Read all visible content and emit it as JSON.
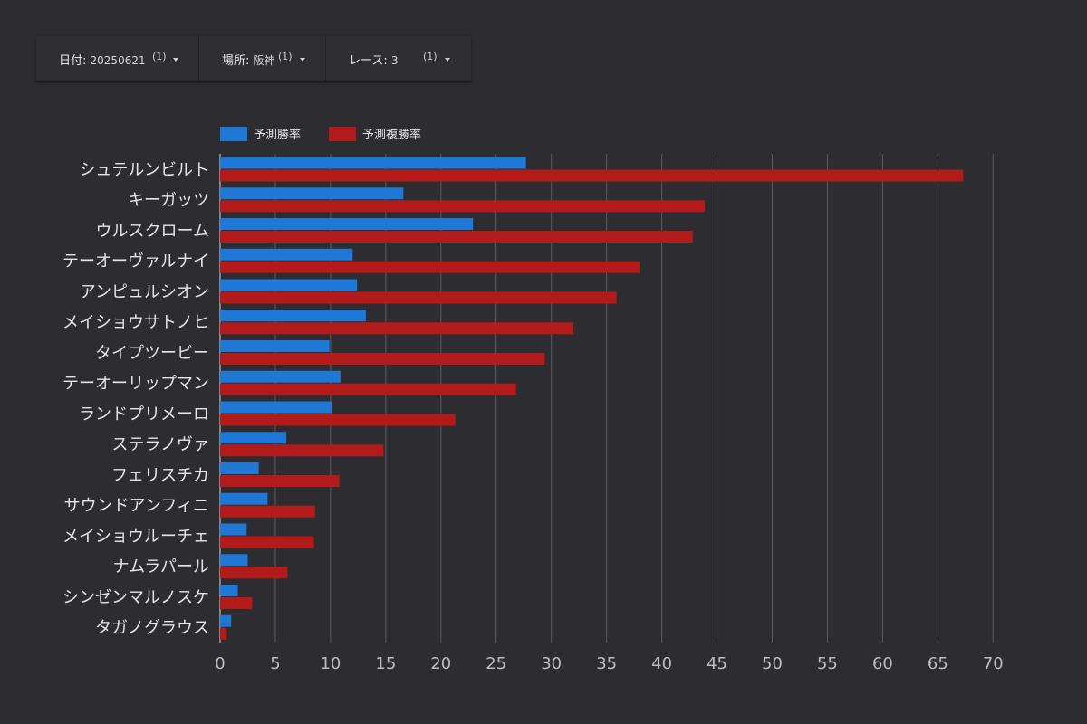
{
  "filters": [
    {
      "key": "日付",
      "value": "20250621",
      "count": "(1)"
    },
    {
      "key": "場所",
      "value": "阪神",
      "count": "(1)"
    },
    {
      "key": "レース",
      "value": "3",
      "count": "(1)"
    }
  ],
  "colors": {
    "win": "#1f77d6",
    "place": "#b31b1b",
    "grid": "#5a5a60",
    "axis": "#bdbdbd"
  },
  "chart_data": {
    "type": "bar",
    "orientation": "horizontal",
    "categories": [
      "シュテルンビルト",
      "キーガッツ",
      "ウルスクローム",
      "テーオーヴァルナイ",
      "アンピュルシオン",
      "メイショウサトノヒ",
      "タイプツービー",
      "テーオーリップマン",
      "ランドプリメーロ",
      "ステラノヴァ",
      "フェリスチカ",
      "サウンドアンフィニ",
      "メイショウルーチェ",
      "ナムラパール",
      "シンゼンマルノスケ",
      "タガノグラウス"
    ],
    "series": [
      {
        "name": "予測勝率",
        "values": [
          27.7,
          16.6,
          22.9,
          12.0,
          12.4,
          13.2,
          9.9,
          10.9,
          10.1,
          6.0,
          3.5,
          4.3,
          2.4,
          2.5,
          1.6,
          1.0
        ]
      },
      {
        "name": "予測複勝率",
        "values": [
          67.3,
          43.9,
          42.8,
          38.0,
          35.9,
          32.0,
          29.4,
          26.8,
          21.3,
          14.8,
          10.8,
          8.6,
          8.5,
          6.1,
          2.9,
          0.6
        ]
      }
    ],
    "xlim": [
      0,
      72
    ],
    "xticks": [
      0,
      5,
      10,
      15,
      20,
      25,
      30,
      35,
      40,
      45,
      50,
      55,
      60,
      65,
      70
    ],
    "grid": true,
    "legend": "top-left"
  }
}
